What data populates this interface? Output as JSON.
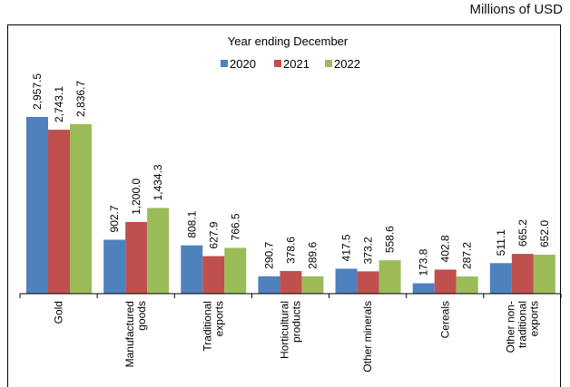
{
  "unit_label": "Millions of USD",
  "chart_data": {
    "type": "bar",
    "legend_title": "Year ending December",
    "legend_placement": "top-center",
    "categories": [
      "Gold",
      "Manufactured goods",
      "Traditional exports",
      "Horticultural products",
      "Other minerals",
      "Cereals",
      "Other non-traditional exports"
    ],
    "category_label_lines": [
      [
        "Gold"
      ],
      [
        "Manufactured",
        "goods"
      ],
      [
        "Traditional",
        "exports"
      ],
      [
        "Horticultural",
        "products"
      ],
      [
        "Other minerals"
      ],
      [
        "Cereals"
      ],
      [
        "Other non-",
        "traditional",
        "exports"
      ]
    ],
    "series": [
      {
        "name": "2020",
        "color": "#4F81BD",
        "values": [
          2957.5,
          902.7,
          808.1,
          290.7,
          417.5,
          173.8,
          511.1
        ],
        "labels": [
          "2,957.5",
          "902.7",
          "808.1",
          "290.7",
          "417.5",
          "173.8",
          "511.1"
        ]
      },
      {
        "name": "2021",
        "color": "#C0504D",
        "values": [
          2743.1,
          1200.0,
          627.9,
          378.6,
          373.2,
          402.8,
          665.2
        ],
        "labels": [
          "2,743.1",
          "1,200.0",
          "627.9",
          "378.6",
          "373.2",
          "402.8",
          "665.2"
        ]
      },
      {
        "name": "2022",
        "color": "#9BBB59",
        "values": [
          2836.7,
          1434.3,
          766.5,
          289.6,
          558.6,
          287.2,
          652.0
        ],
        "labels": [
          "2,836.7",
          "1,434.3",
          "766.5",
          "289.6",
          "558.6",
          "287.2",
          "652.0"
        ]
      }
    ],
    "ylim": [
      0,
      3000
    ],
    "grid": false
  }
}
